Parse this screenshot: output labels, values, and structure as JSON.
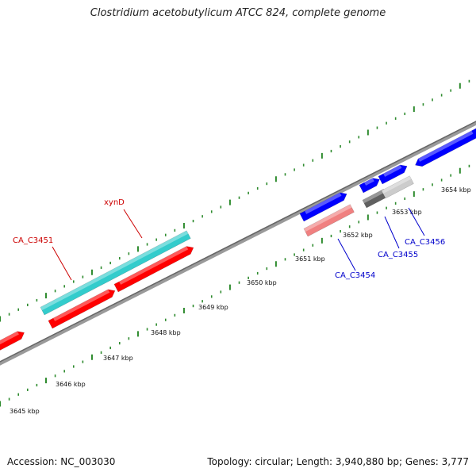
{
  "title": "Clostridium acetobutylicum ATCC 824, complete genome",
  "footer": {
    "accession": "Accession: NC_003030",
    "topology": "Topology: circular; Length: 3,940,880 bp; Genes: 3,777"
  },
  "colors": {
    "backbone": "#808080",
    "tick_dots": "#2e8b2e",
    "red_gene": "#ff0000",
    "cyan_gene": "#33cccc",
    "blue_gene": "#0000ff",
    "pink_gene": "#f08080",
    "dark_gray_gene": "#606060",
    "light_gray_gene": "#cccccc",
    "label_red": "#cc0000",
    "label_blue": "#0000cc"
  },
  "scale_labels": [
    "3645 kbp",
    "3646 kbp",
    "3647 kbp",
    "3648 kbp",
    "3649 kbp",
    "3650 kbp",
    "3651 kbp",
    "3652 kbp",
    "3653 kbp",
    "3654 kbp"
  ],
  "gene_labels": [
    {
      "id": "xynD",
      "text": "xynD",
      "color": "#cc0000"
    },
    {
      "id": "CA_C3451",
      "text": "CA_C3451",
      "color": "#cc0000"
    },
    {
      "id": "CA_C3454",
      "text": "CA_C3454",
      "color": "#0000cc"
    },
    {
      "id": "CA_C3455",
      "text": "CA_C3455",
      "color": "#0000cc"
    },
    {
      "id": "CA_C3456",
      "text": "CA_C3456",
      "color": "#0000cc"
    }
  ]
}
